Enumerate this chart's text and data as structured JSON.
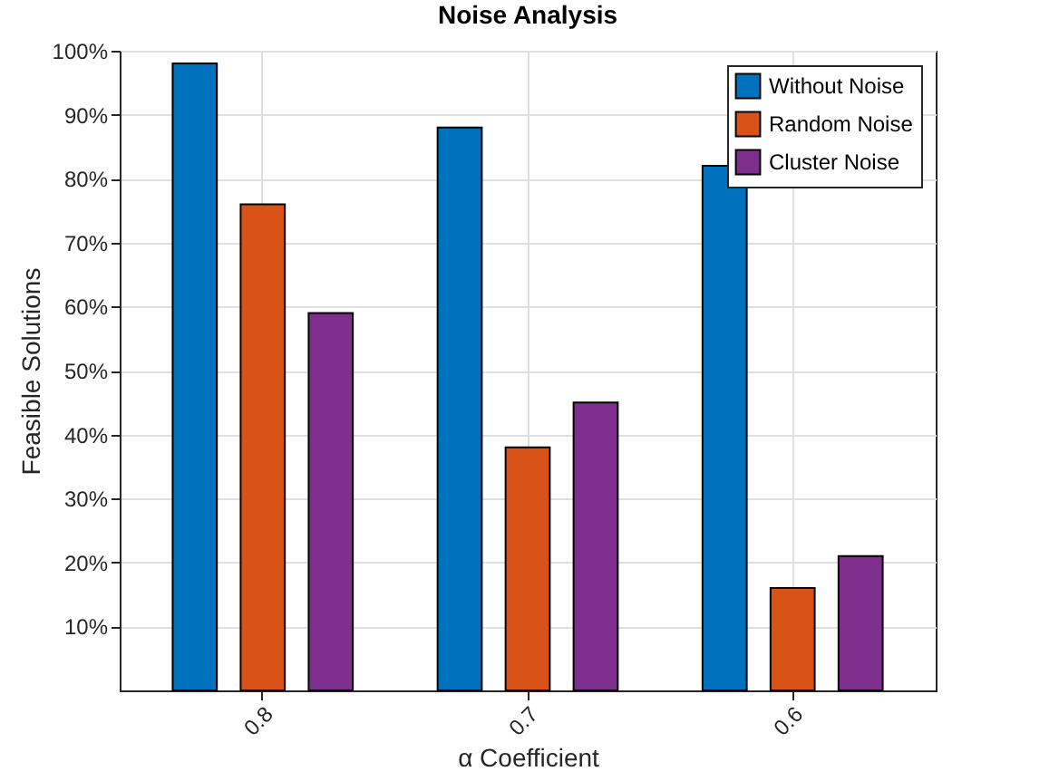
{
  "chart_data": {
    "type": "bar",
    "title": "Noise Analysis",
    "xlabel": "α Coefficient",
    "ylabel": "Feasible Solutions",
    "categories": [
      "0.8",
      "0.7",
      "0.6"
    ],
    "series": [
      {
        "name": "Without Noise",
        "color": "#0072bd",
        "values": [
          98,
          88,
          82
        ]
      },
      {
        "name": "Random Noise",
        "color": "#d95319",
        "values": [
          76,
          38,
          16
        ]
      },
      {
        "name": "Cluster Noise",
        "color": "#7e2f8e",
        "values": [
          59,
          45,
          21
        ]
      }
    ],
    "ylim": [
      0,
      100
    ],
    "yticks": [
      {
        "value": 10,
        "label": "10%"
      },
      {
        "value": 20,
        "label": "20%"
      },
      {
        "value": 30,
        "label": "30%"
      },
      {
        "value": 40,
        "label": "40%"
      },
      {
        "value": 50,
        "label": "50%"
      },
      {
        "value": 60,
        "label": "60%"
      },
      {
        "value": 70,
        "label": "70%"
      },
      {
        "value": 80,
        "label": "80%"
      },
      {
        "value": 90,
        "label": "90%"
      },
      {
        "value": 100,
        "label": "100%"
      }
    ],
    "grid": true,
    "legend": "top right"
  }
}
